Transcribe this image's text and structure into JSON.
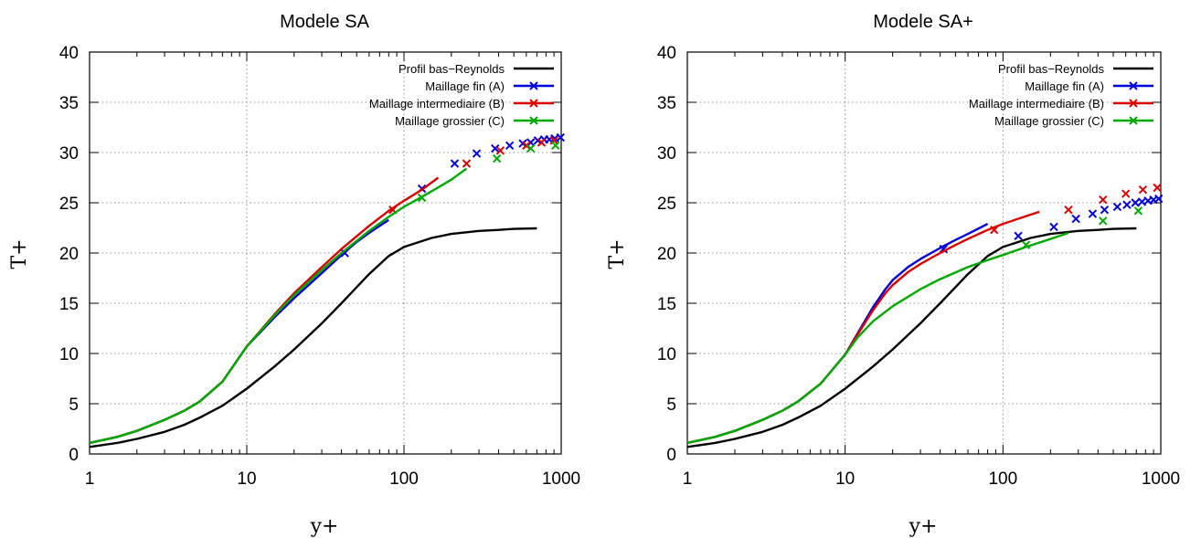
{
  "chart_data": [
    {
      "type": "line",
      "title": "Modele SA",
      "xlabel": "y+",
      "ylabel": "T+",
      "xscale": "log",
      "xlim": [
        1,
        1000
      ],
      "ylim": [
        0,
        40
      ],
      "xticks": [
        "1",
        "10",
        "100",
        "1000"
      ],
      "yticks": [
        "0",
        "5",
        "10",
        "15",
        "20",
        "25",
        "30",
        "35",
        "40"
      ],
      "grid": true,
      "legend_position": "top-right",
      "series": [
        {
          "name": "Profil bas−Reynolds",
          "color": "#000000",
          "marker": "none",
          "x": [
            1,
            1.5,
            2,
            3,
            4,
            5,
            7,
            10,
            15,
            20,
            30,
            40,
            60,
            80,
            100,
            150,
            200,
            300,
            400,
            500,
            700
          ],
          "y": [
            0.7,
            1.1,
            1.5,
            2.2,
            2.9,
            3.6,
            4.8,
            6.5,
            8.7,
            10.4,
            13.0,
            15.0,
            17.9,
            19.7,
            20.6,
            21.5,
            21.9,
            22.2,
            22.3,
            22.4,
            22.45
          ]
        },
        {
          "name": "Maillage fin (A)",
          "color": "#0000dd",
          "marker": "x",
          "x": [
            1,
            1.5,
            2,
            3,
            4,
            5,
            7,
            10,
            15,
            20,
            30,
            40,
            50,
            60,
            80
          ],
          "y": [
            1.1,
            1.7,
            2.3,
            3.4,
            4.3,
            5.2,
            7.2,
            10.7,
            13.6,
            15.5,
            18.0,
            19.8,
            21.1,
            22.0,
            23.3
          ],
          "markers_x": [
            42,
            130,
            210,
            290,
            380,
            470,
            570,
            640,
            710,
            780,
            840,
            910,
            990
          ],
          "markers_y": [
            20.0,
            26.4,
            28.9,
            29.9,
            30.4,
            30.7,
            30.9,
            31.0,
            31.2,
            31.3,
            31.3,
            31.4,
            31.5
          ]
        },
        {
          "name": "Maillage intermediaire (B)",
          "color": "#dd0000",
          "marker": "x",
          "x": [
            1,
            1.5,
            2,
            3,
            4,
            5,
            7,
            10,
            15,
            20,
            30,
            40,
            60,
            80,
            100,
            130,
            165
          ],
          "y": [
            1.1,
            1.7,
            2.3,
            3.4,
            4.3,
            5.2,
            7.2,
            10.7,
            13.9,
            16.0,
            18.6,
            20.4,
            22.7,
            24.2,
            25.2,
            26.3,
            27.5
          ],
          "markers_x": [
            85,
            250,
            410,
            600,
            750,
            900
          ],
          "markers_y": [
            24.3,
            28.9,
            30.2,
            30.7,
            31.0,
            31.2
          ]
        },
        {
          "name": "Maillage grossier (C)",
          "color": "#00aa00",
          "marker": "x",
          "x": [
            1,
            1.5,
            2,
            3,
            4,
            5,
            7,
            10,
            15,
            20,
            30,
            40,
            60,
            80,
            100,
            130,
            160,
            200,
            250
          ],
          "y": [
            1.1,
            1.7,
            2.3,
            3.4,
            4.3,
            5.2,
            7.2,
            10.7,
            13.8,
            15.8,
            18.3,
            20.0,
            22.2,
            23.6,
            24.6,
            25.6,
            26.4,
            27.3,
            28.4
          ],
          "markers_x": [
            130,
            390,
            640,
            920
          ],
          "markers_y": [
            25.5,
            29.4,
            30.4,
            30.7
          ]
        }
      ]
    },
    {
      "type": "line",
      "title": "Modele SA+",
      "xlabel": "y+",
      "ylabel": "T+",
      "xscale": "log",
      "xlim": [
        1,
        1000
      ],
      "ylim": [
        0,
        40
      ],
      "xticks": [
        "1",
        "10",
        "100",
        "1000"
      ],
      "yticks": [
        "0",
        "5",
        "10",
        "15",
        "20",
        "25",
        "30",
        "35",
        "40"
      ],
      "grid": true,
      "legend_position": "top-right",
      "series": [
        {
          "name": "Profil bas−Reynolds",
          "color": "#000000",
          "marker": "none",
          "x": [
            1,
            1.5,
            2,
            3,
            4,
            5,
            7,
            10,
            15,
            20,
            30,
            40,
            60,
            80,
            100,
            150,
            200,
            300,
            400,
            500,
            700
          ],
          "y": [
            0.7,
            1.1,
            1.5,
            2.2,
            2.9,
            3.6,
            4.8,
            6.5,
            8.7,
            10.4,
            13.0,
            15.0,
            17.9,
            19.7,
            20.6,
            21.5,
            21.9,
            22.2,
            22.3,
            22.4,
            22.45
          ]
        },
        {
          "name": "Maillage fin (A)",
          "color": "#0000dd",
          "marker": "x",
          "x": [
            1,
            1.5,
            2,
            3,
            4,
            5,
            7,
            10,
            12,
            15,
            18,
            20,
            25,
            30,
            40,
            50,
            60,
            80
          ],
          "y": [
            1.1,
            1.7,
            2.3,
            3.4,
            4.3,
            5.2,
            7.0,
            9.9,
            12.0,
            14.6,
            16.4,
            17.3,
            18.6,
            19.4,
            20.5,
            21.3,
            21.9,
            22.9
          ],
          "markers_x": [
            42,
            125,
            210,
            290,
            370,
            440,
            530,
            610,
            690,
            760,
            830,
            900,
            970
          ],
          "markers_y": [
            20.4,
            21.7,
            22.6,
            23.4,
            23.9,
            24.3,
            24.6,
            24.8,
            25.0,
            25.1,
            25.2,
            25.3,
            25.4
          ]
        },
        {
          "name": "Maillage intermediaire (B)",
          "color": "#dd0000",
          "marker": "x",
          "x": [
            1,
            1.5,
            2,
            3,
            4,
            5,
            7,
            10,
            12,
            15,
            18,
            20,
            25,
            30,
            40,
            50,
            60,
            80,
            100,
            130,
            170
          ],
          "y": [
            1.1,
            1.7,
            2.3,
            3.4,
            4.3,
            5.2,
            7.0,
            9.9,
            11.9,
            14.3,
            16.0,
            16.8,
            18.1,
            18.9,
            20.0,
            20.8,
            21.4,
            22.3,
            22.9,
            23.5,
            24.1
          ],
          "markers_x": [
            88,
            260,
            430,
            600,
            770,
            950
          ],
          "markers_y": [
            22.3,
            24.3,
            25.3,
            25.9,
            26.3,
            26.5
          ]
        },
        {
          "name": "Maillage grossier (C)",
          "color": "#00aa00",
          "marker": "x",
          "x": [
            1,
            1.5,
            2,
            3,
            4,
            5,
            7,
            10,
            12,
            15,
            20,
            30,
            40,
            60,
            80,
            100,
            140,
            200,
            260
          ],
          "y": [
            1.1,
            1.7,
            2.3,
            3.4,
            4.3,
            5.2,
            7.0,
            9.9,
            11.6,
            13.2,
            14.7,
            16.4,
            17.4,
            18.6,
            19.3,
            19.8,
            20.6,
            21.4,
            22.0
          ],
          "markers_x": [
            140,
            430,
            720
          ],
          "markers_y": [
            20.8,
            23.2,
            24.2
          ]
        }
      ]
    }
  ]
}
